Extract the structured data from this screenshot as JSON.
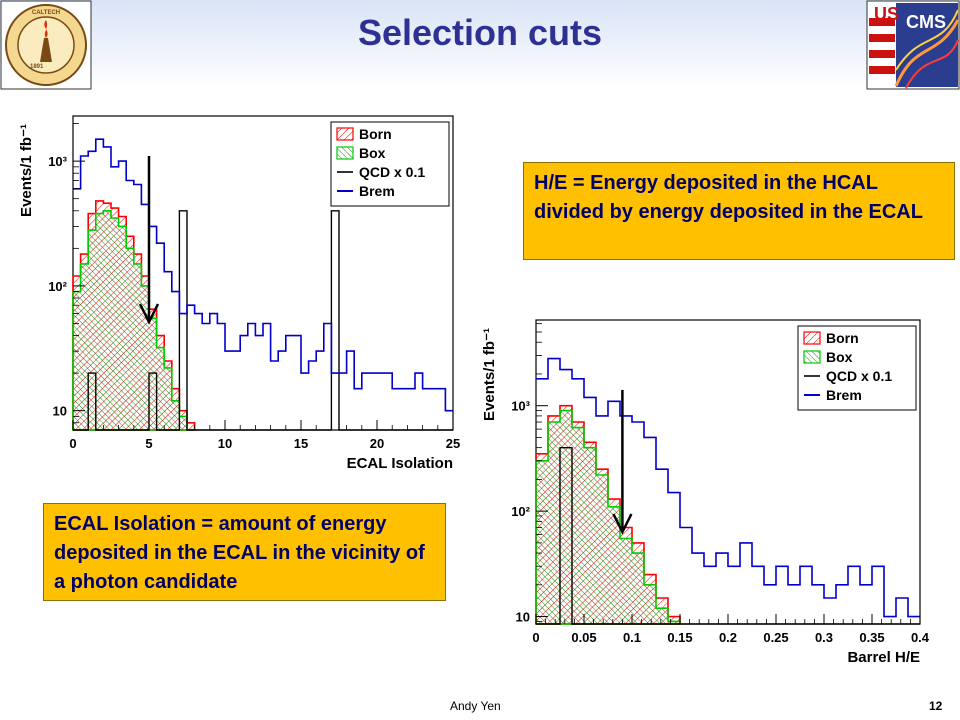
{
  "slide": {
    "title": "Selection cuts",
    "footer_author": "Andy Yen",
    "page_number": "12",
    "left_logo_text": "CALIFORNIA INSTITUTE OF TECHNOLOGY",
    "left_logo_year": "1891",
    "right_logo_text": "US CMS"
  },
  "notes": {
    "he": "H/E = Energy deposited in the HCAL divided by energy deposited in the ECAL",
    "ecal": "ECAL Isolation = amount of energy deposited in the ECAL in the vicinity of a photon candidate"
  },
  "colors": {
    "title": "#2e3192",
    "born": "#ff0000",
    "box": "#00cc00",
    "qcd": "#000000",
    "brem": "#0000cc",
    "note_bg": "#ffc000"
  },
  "chart_data": [
    {
      "type": "histogram",
      "xlabel": "ECAL Isolation",
      "ylabel": "Events/1 fb⁻¹",
      "log_y": true,
      "xlim": [
        0,
        25
      ],
      "ylim": [
        7,
        2300
      ],
      "bin_width": 0.5,
      "x_ticks": [
        "0",
        "5",
        "10",
        "15",
        "20",
        "25"
      ],
      "y_ticks": [
        {
          "value": 10,
          "label": "10"
        },
        {
          "value": 100,
          "label": "10²"
        },
        {
          "value": 1000,
          "label": "10³"
        }
      ],
      "cut_arrow_x": 5,
      "legend_position": "top-right",
      "legend": [
        {
          "name": "Born",
          "style": "hatched-red"
        },
        {
          "name": "Box",
          "style": "hatched-green"
        },
        {
          "name": "QCD x 0.1",
          "style": "line-black"
        },
        {
          "name": "Brem",
          "style": "line-blue"
        }
      ],
      "series": [
        {
          "name": "Born",
          "values": [
            120,
            180,
            380,
            480,
            460,
            420,
            360,
            250,
            180,
            120,
            65,
            40,
            25,
            15,
            10,
            8
          ]
        },
        {
          "name": "Box",
          "values": [
            90,
            150,
            280,
            380,
            400,
            350,
            300,
            200,
            150,
            100,
            55,
            32,
            22,
            12,
            9,
            7
          ]
        },
        {
          "name": "QCD x 0.1",
          "values": [
            7,
            7,
            20,
            7,
            7,
            7,
            7,
            7,
            7,
            7,
            20,
            7,
            7,
            7,
            400,
            7,
            7,
            7,
            7,
            7,
            7,
            7,
            7,
            7,
            7,
            7,
            7,
            7,
            7,
            7,
            7,
            7,
            7,
            7,
            400,
            7,
            7,
            7,
            7,
            7,
            7,
            7,
            7,
            7,
            7,
            7,
            7,
            7,
            7,
            7
          ]
        },
        {
          "name": "Brem",
          "values": [
            600,
            1100,
            1200,
            1500,
            1300,
            900,
            1000,
            700,
            650,
            450,
            300,
            220,
            130,
            90,
            60,
            70,
            60,
            50,
            60,
            50,
            30,
            30,
            40,
            50,
            40,
            50,
            25,
            30,
            40,
            40,
            20,
            25,
            30,
            50,
            20,
            20,
            30,
            15,
            20,
            20,
            20,
            20,
            15,
            15,
            15,
            20,
            15,
            15,
            15,
            10
          ]
        }
      ]
    },
    {
      "type": "histogram",
      "xlabel": "Barrel H/E",
      "ylabel": "Events/1 fb⁻¹",
      "log_y": true,
      "xlim": [
        0,
        0.4
      ],
      "ylim": [
        8.5,
        6500
      ],
      "bin_width": 0.0125,
      "x_ticks": [
        "0",
        "0.05",
        "0.1",
        "0.15",
        "0.2",
        "0.25",
        "0.3",
        "0.35",
        "0.4"
      ],
      "y_ticks": [
        {
          "value": 10,
          "label": "10"
        },
        {
          "value": 100,
          "label": "10²"
        },
        {
          "value": 1000,
          "label": "10³"
        }
      ],
      "cut_arrow_x": 0.09,
      "legend_position": "top-right",
      "legend": [
        {
          "name": "Born",
          "style": "hatched-red"
        },
        {
          "name": "Box",
          "style": "hatched-green"
        },
        {
          "name": "QCD x 0.1",
          "style": "line-black"
        },
        {
          "name": "Brem",
          "style": "line-blue"
        }
      ],
      "series": [
        {
          "name": "Born",
          "values": [
            350,
            800,
            1000,
            700,
            450,
            250,
            130,
            70,
            50,
            25,
            15,
            10
          ]
        },
        {
          "name": "Box",
          "values": [
            300,
            700,
            900,
            620,
            400,
            220,
            110,
            55,
            40,
            20,
            12,
            9
          ]
        },
        {
          "name": "QCD x 0.1",
          "values": [
            8.5,
            8.5,
            400,
            8.5,
            8.5,
            8.5,
            8.5,
            8.5,
            8.5,
            8.5,
            8.5,
            8.5,
            8.5,
            8.5,
            8.5,
            8.5,
            8.5,
            8.5,
            8.5,
            8.5,
            8.5,
            8.5,
            8.5,
            8.5,
            8.5,
            8.5,
            8.5,
            8.5,
            8.5,
            8.5,
            8.5,
            8.5
          ]
        },
        {
          "name": "Brem",
          "values": [
            1800,
            2800,
            2200,
            1800,
            1200,
            800,
            1100,
            800,
            700,
            500,
            250,
            150,
            70,
            40,
            30,
            40,
            30,
            50,
            30,
            20,
            30,
            20,
            30,
            20,
            15,
            20,
            30,
            20,
            30,
            10,
            15,
            10
          ]
        }
      ]
    }
  ]
}
